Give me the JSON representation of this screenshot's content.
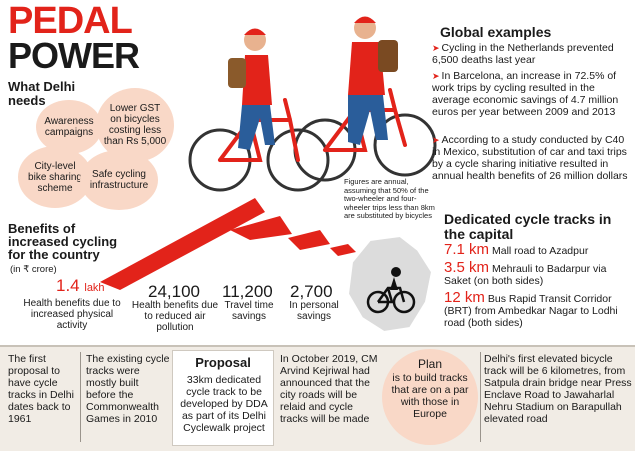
{
  "title": {
    "line1": "PEDAL",
    "line2": "POWER"
  },
  "needs": {
    "heading": "What Delhi needs",
    "bubbles": [
      {
        "text": "Awareness campaigns"
      },
      {
        "text": "Lower GST on bicycles costing less than Rs 5,000"
      },
      {
        "text": "City-level bike sharing scheme"
      },
      {
        "text": "Safe cycling infrastructure"
      }
    ]
  },
  "global": {
    "heading": "Global examples",
    "items": [
      "Cycling in the Netherlands prevented 6,500 deaths last year",
      "In Barcelona, an increase in 72.5% of work trips by cycling resulted in the average economic savings of 4.7 million euros per year between 2009 and 2013",
      "According to a study conducted by C40 in Mexico, substitution of car and taxi trips by a cycle sharing initiative resulted in annual health benefits of 26 million dollars"
    ]
  },
  "note": "Figures are annual, assuming that 50% of the two-wheeler and four-wheeler trips less than 8km are substituted by bicycles",
  "benefits": {
    "heading": "Benefits of increased cycling for the country",
    "unit": "(in ₹ crore)",
    "items": [
      {
        "value": "1.4",
        "suffix": "lakh",
        "label": "Health benefits due to increased physical activity"
      },
      {
        "value": "24,100",
        "suffix": "",
        "label": "Health benefits due to reduced air pollution"
      },
      {
        "value": "11,200",
        "suffix": "",
        "label": "Travel time savings"
      },
      {
        "value": "2,700",
        "suffix": "",
        "label": "In personal savings"
      }
    ]
  },
  "tracks": {
    "heading": "Dedicated cycle tracks in the capital",
    "items": [
      {
        "km": "7.1 km",
        "text": "Mall road to Azadpur"
      },
      {
        "km": "3.5 km",
        "text": "Mehrauli to Badarpur via Saket (on both sides)"
      },
      {
        "km": "12 km",
        "text": "Bus Rapid Transit Corridor (BRT) from Ambedkar Nagar to Lodhi road (both sides)"
      }
    ]
  },
  "bottom": {
    "col1": "The first proposal to have cycle tracks in Delhi dates back to 1961",
    "col2": "The existing cycle tracks were mostly built before the Commonwealth Games in 2010",
    "proposal_title": "Proposal",
    "proposal_text": "33km dedicated cycle track to be developed by DDA as part of its Delhi Cyclewalk project",
    "col4": "In October 2019, CM Arvind Kejriwal had announced that the city roads will be relaid and cycle tracks will be made",
    "plan_title": "Plan",
    "plan_text": "is to build tracks that are on a par with those in Europe",
    "col6": "Delhi's first elevated bicycle track will be 6 kilometres, from Satpula drain bridge near Press Enclave Road to Jawaharlal Nehru Stadium on Barapullah elevated road"
  },
  "colors": {
    "accent": "#e2231a",
    "bubble": "#f9d8c7",
    "panel": "#f1ece5"
  }
}
